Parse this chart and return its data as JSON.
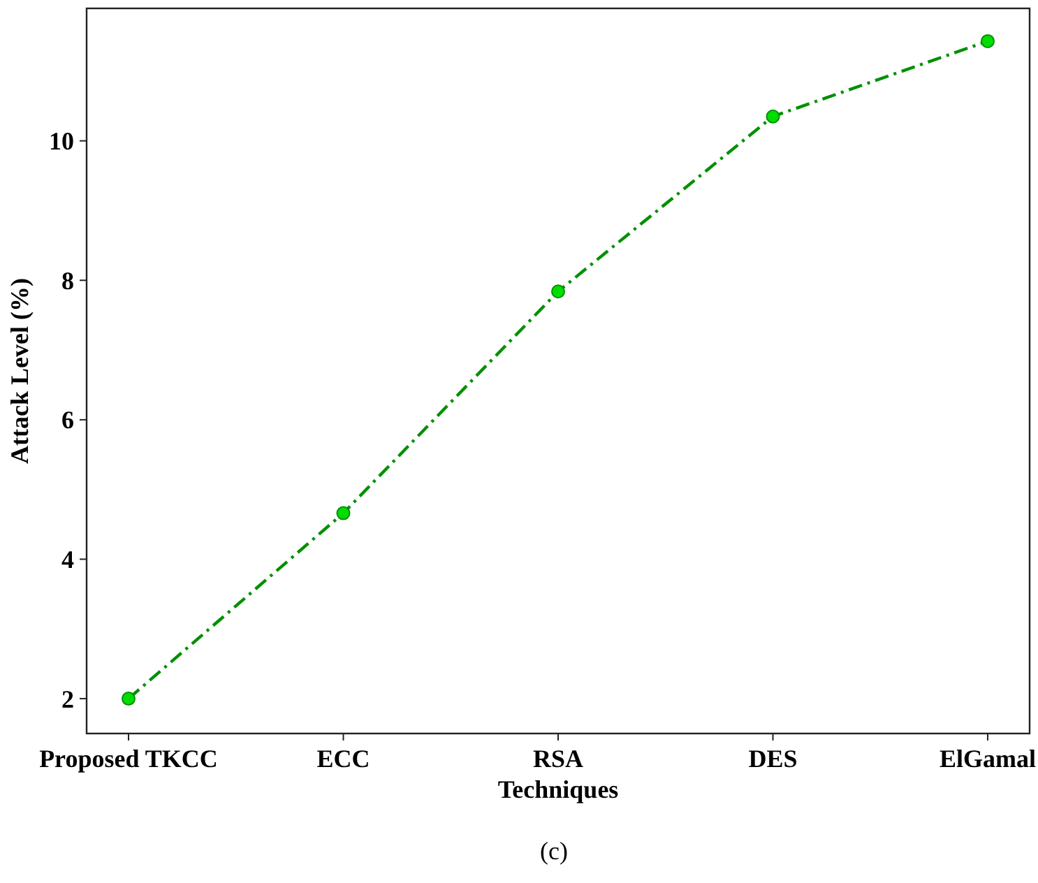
{
  "chart_data": {
    "type": "line",
    "categories": [
      "Proposed TKCC",
      "ECC",
      "RSA",
      "DES",
      "ElGamal"
    ],
    "series": [
      {
        "color": "#009000",
        "values": [
          2.0,
          4.66,
          7.84,
          10.35,
          11.43
        ]
      }
    ],
    "xlabel": "Techniques",
    "ylabel": "Attack Level (%)",
    "ylim": [
      1.5,
      11.9
    ],
    "yticks": [
      2,
      4,
      6,
      8,
      10
    ],
    "marker": "circle",
    "line_style": "dashed",
    "annotations": [
      "(c)"
    ]
  }
}
